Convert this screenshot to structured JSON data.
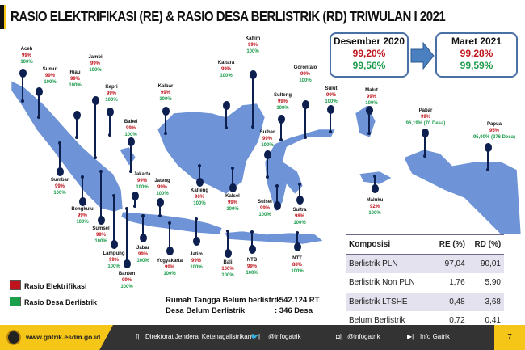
{
  "title": "RASIO ELEKTRIFIKASI (RE) & RASIO DESA BERLISTRIK (RD) TRIWULAN I 2021",
  "comparison": {
    "before": {
      "label": "Desember 2020",
      "re": "99,20%",
      "rd": "99,56%"
    },
    "after": {
      "label": "Maret 2021",
      "re": "99,28%",
      "rd": "99,59%"
    }
  },
  "provinces": [
    {
      "name": "Aceh",
      "re": "99%",
      "rd": "100%"
    },
    {
      "name": "Sumut",
      "re": "99%",
      "rd": "100%"
    },
    {
      "name": "Riau",
      "re": "99%",
      "rd": "100%"
    },
    {
      "name": "Jambi",
      "re": "99%",
      "rd": "100%"
    },
    {
      "name": "Kepri",
      "re": "99%",
      "rd": "100%"
    },
    {
      "name": "Kalbar",
      "re": "99%",
      "rd": "100%"
    },
    {
      "name": "Kaltara",
      "re": "99%",
      "rd": "100%"
    },
    {
      "name": "Kaltim",
      "re": "99%",
      "rd": "100%"
    },
    {
      "name": "Gorontalo",
      "re": "99%",
      "rd": "100%"
    },
    {
      "name": "Sulteng",
      "re": "99%",
      "rd": "100%"
    },
    {
      "name": "Sulut",
      "re": "99%",
      "rd": "100%"
    },
    {
      "name": "Malut",
      "re": "99%",
      "rd": "100%"
    },
    {
      "name": "Pabar",
      "re": "99%",
      "rd": "96,19% (70 Desa)"
    },
    {
      "name": "Papua",
      "re": "95%",
      "rd": "95,00% (276 Desa)"
    },
    {
      "name": "Maluku",
      "re": "92%",
      "rd": "100%"
    },
    {
      "name": "Sultra",
      "re": "98%",
      "rd": "100%"
    },
    {
      "name": "Sulsel",
      "re": "99%",
      "rd": "100%"
    },
    {
      "name": "Sulbar",
      "re": "99%",
      "rd": "100%"
    },
    {
      "name": "NTT",
      "re": "88%",
      "rd": "100%"
    },
    {
      "name": "NTB",
      "re": "99%",
      "rd": "100%"
    },
    {
      "name": "Bali",
      "re": "100%",
      "rd": "100%"
    },
    {
      "name": "Jatim",
      "re": "99%",
      "rd": "100%"
    },
    {
      "name": "Yogyakarta",
      "re": "99%",
      "rd": "100%"
    },
    {
      "name": "Jateng",
      "re": "99%",
      "rd": "100%"
    },
    {
      "name": "Jabar",
      "re": "99%",
      "rd": "100%"
    },
    {
      "name": "Jakarta",
      "re": "99%",
      "rd": "100%"
    },
    {
      "name": "Banten",
      "re": "99%",
      "rd": "100%"
    },
    {
      "name": "Lampung",
      "re": "99%",
      "rd": "100%"
    },
    {
      "name": "Sumsel",
      "re": "99%",
      "rd": "100%"
    },
    {
      "name": "Bengkulu",
      "re": "99%",
      "rd": "100%"
    },
    {
      "name": "Sumbar",
      "re": "99%",
      "rd": "100%"
    },
    {
      "name": "Babel",
      "re": "99%",
      "rd": "100%"
    },
    {
      "name": "Kalteng",
      "re": "96%",
      "rd": "100%"
    },
    {
      "name": "Kalsel",
      "re": "99%",
      "rd": "100%"
    }
  ],
  "legend": {
    "re": "Rasio Elektrifikasi",
    "rd": "Rasio Desa Berlistrik",
    "re_color": "#c0141c",
    "rd_color": "#1aa04a"
  },
  "summary": {
    "rt_label": "Rumah Tangga Belum berlistrik",
    "rt_value": ": 542.124 RT",
    "desa_label": "Desa Belum Berlistrik",
    "desa_value": ": 346 Desa"
  },
  "table": {
    "headers": [
      "Komposisi",
      "RE (%)",
      "RD (%)"
    ],
    "rows": [
      [
        "Berlistrik PLN",
        "97,04",
        "90,01"
      ],
      [
        "Berlistrik Non PLN",
        "1,76",
        "5,90"
      ],
      [
        "Berlistrik LTSHE",
        "0,48",
        "3,68"
      ],
      [
        "Belum Berlistrik",
        "0,72",
        "0,41"
      ]
    ]
  },
  "footer": {
    "website": "www.gatrik.esdm.go.id",
    "facebook": "Direktorat Jenderal Ketenagalistrikan",
    "twitter": "@infogatrik",
    "instagram": "@infogatrik",
    "youtube": "Info Gatrik",
    "page": "7"
  }
}
